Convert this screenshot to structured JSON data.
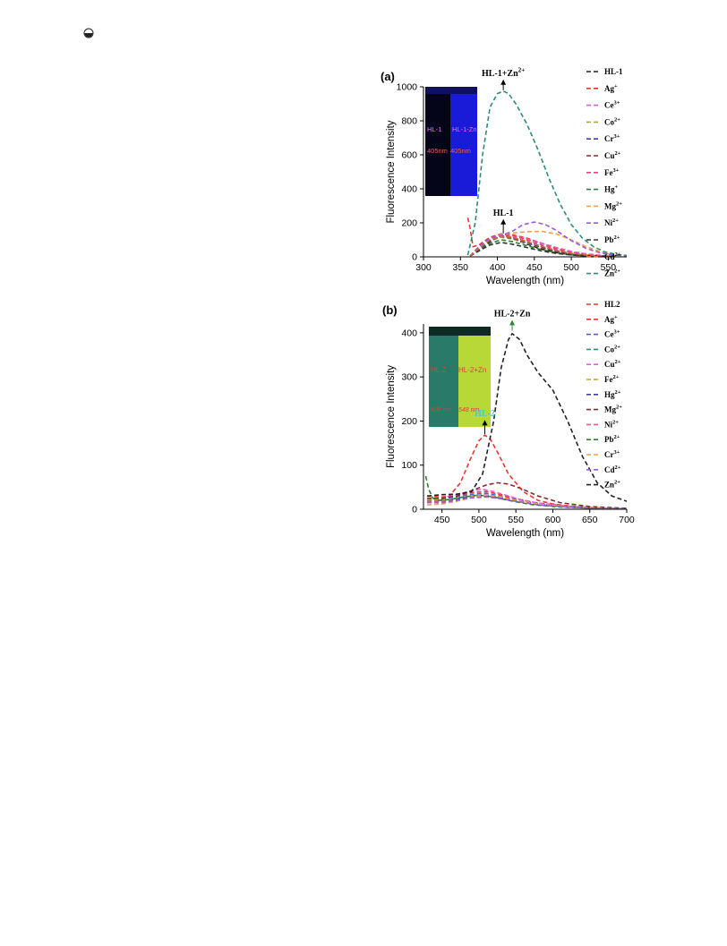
{
  "page": {
    "corner_icon": "half-circle-icon"
  },
  "chart_data": [
    {
      "type": "line",
      "panel_label": "(a)",
      "xlabel": "Wavelength (nm)",
      "ylabel": "Fluorescence Intensity",
      "xlim": [
        300,
        575
      ],
      "ylim": [
        0,
        1000
      ],
      "xticks": [
        300,
        350,
        400,
        450,
        500,
        550
      ],
      "yticks": [
        0,
        200,
        400,
        600,
        800,
        1000
      ],
      "grid": false,
      "legend_placement": "right",
      "annotations": [
        {
          "text": "HL-1+Zn2+",
          "x": 408,
          "y": 980
        },
        {
          "text": "HL-1",
          "x": 408,
          "y": 138
        }
      ],
      "inset": {
        "label_left": "HL-1",
        "label_right": "HL-1-Zn",
        "wl_left": "405nm",
        "wl_right": "405nm"
      },
      "series": [
        {
          "name": "HL-1",
          "color": "#222222",
          "x": [
            363,
            375,
            390,
            405,
            420,
            440,
            460,
            480,
            500,
            520,
            540,
            560
          ],
          "y": [
            5,
            40,
            90,
            125,
            110,
            75,
            45,
            25,
            12,
            6,
            3,
            2
          ]
        },
        {
          "name": "Ag+",
          "color": "#e8362f",
          "x": [
            360,
            363,
            367,
            375,
            390,
            405,
            420,
            440,
            460,
            480,
            500,
            520,
            540,
            560
          ],
          "y": [
            230,
            170,
            60,
            70,
            115,
            135,
            130,
            110,
            80,
            50,
            28,
            14,
            7,
            4
          ]
        },
        {
          "name": "Ce3+",
          "color": "#d95bd9",
          "x": [
            363,
            375,
            390,
            405,
            420,
            440,
            460,
            480,
            500,
            520,
            540,
            560
          ],
          "y": [
            5,
            60,
            110,
            130,
            125,
            105,
            80,
            55,
            32,
            18,
            9,
            5
          ]
        },
        {
          "name": "Co2+",
          "color": "#a8a83a",
          "x": [
            363,
            375,
            390,
            405,
            420,
            440,
            460,
            480,
            500,
            520,
            540,
            560
          ],
          "y": [
            5,
            50,
            95,
            115,
            105,
            80,
            55,
            32,
            18,
            9,
            5,
            3
          ]
        },
        {
          "name": "Cr3+",
          "color": "#3f3fa8",
          "x": [
            363,
            375,
            390,
            405,
            420,
            440,
            460,
            480,
            500,
            520,
            540,
            560
          ],
          "y": [
            5,
            45,
            95,
            120,
            110,
            85,
            55,
            32,
            17,
            9,
            5,
            3
          ]
        },
        {
          "name": "Cu2+",
          "color": "#8b2b2b",
          "x": [
            363,
            375,
            390,
            405,
            420,
            440,
            460,
            480,
            500,
            520,
            540,
            560
          ],
          "y": [
            5,
            55,
            105,
            125,
            115,
            90,
            60,
            35,
            19,
            10,
            5,
            3
          ]
        },
        {
          "name": "Fe3+",
          "color": "#e8457a",
          "x": [
            363,
            375,
            390,
            405,
            420,
            440,
            460,
            480,
            500,
            520,
            540,
            560
          ],
          "y": [
            5,
            60,
            110,
            135,
            125,
            100,
            70,
            42,
            24,
            12,
            6,
            3
          ]
        },
        {
          "name": "Hg+",
          "color": "#2e7d32",
          "x": [
            363,
            375,
            390,
            405,
            420,
            440,
            460,
            480,
            500,
            520,
            540,
            560
          ],
          "y": [
            5,
            40,
            80,
            100,
            90,
            65,
            42,
            24,
            13,
            7,
            4,
            2
          ]
        },
        {
          "name": "Mg2+",
          "color": "#f0a050",
          "x": [
            363,
            375,
            390,
            405,
            420,
            440,
            460,
            480,
            500,
            520,
            540,
            560,
            575
          ],
          "y": [
            5,
            55,
            105,
            130,
            140,
            148,
            150,
            135,
            100,
            60,
            30,
            14,
            8
          ]
        },
        {
          "name": "Ni2+",
          "color": "#9b59d9",
          "x": [
            363,
            375,
            390,
            405,
            420,
            435,
            450,
            465,
            480,
            500,
            520,
            540,
            560,
            575
          ],
          "y": [
            5,
            60,
            110,
            125,
            150,
            190,
            205,
            190,
            155,
            95,
            50,
            22,
            10,
            6
          ]
        },
        {
          "name": "Pb2+",
          "color": "#333333",
          "x": [
            363,
            375,
            390,
            405,
            420,
            440,
            460,
            480,
            500,
            520,
            540,
            560
          ],
          "y": [
            5,
            35,
            70,
            85,
            75,
            55,
            35,
            20,
            11,
            6,
            3,
            2
          ]
        },
        {
          "name": "Cd2+",
          "color": "#d66a2f",
          "x": [
            363,
            375,
            390,
            405,
            420,
            440,
            460,
            480,
            500,
            520,
            540,
            560
          ],
          "y": [
            5,
            50,
            100,
            120,
            115,
            90,
            62,
            38,
            21,
            11,
            6,
            3
          ]
        },
        {
          "name": "Zn2+",
          "color": "#2e8b7a",
          "x": [
            360,
            370,
            380,
            390,
            400,
            408,
            415,
            425,
            440,
            455,
            470,
            485,
            500,
            515,
            530,
            545,
            560,
            575
          ],
          "y": [
            10,
            200,
            600,
            880,
            960,
            975,
            960,
            900,
            780,
            630,
            460,
            310,
            190,
            110,
            60,
            30,
            15,
            8
          ]
        }
      ]
    },
    {
      "type": "line",
      "panel_label": "(b)",
      "xlabel": "Wavelength (nm)",
      "ylabel": "Fluorescence Intensity",
      "xlim": [
        425,
        700
      ],
      "ylim": [
        0,
        420
      ],
      "xticks": [
        450,
        500,
        550,
        600,
        650,
        700
      ],
      "yticks": [
        0,
        100,
        200,
        300,
        400
      ],
      "grid": false,
      "legend_placement": "right",
      "annotations": [
        {
          "text": "HL-2+Zn",
          "x": 545,
          "y": 405
        },
        {
          "text": "HL-2",
          "x": 508,
          "y": 170
        }
      ],
      "inset": {
        "label_left": "HL-2",
        "label_right": "HL-2+Zn",
        "wl_left": "508 nm",
        "wl_right": "548 nm"
      },
      "series": [
        {
          "name": "HL2",
          "color": "#e8362f",
          "x": [
            430,
            445,
            460,
            475,
            490,
            500,
            508,
            515,
            525,
            540,
            560,
            580,
            600,
            620,
            650,
            680,
            700
          ],
          "y": [
            15,
            18,
            30,
            60,
            120,
            155,
            168,
            160,
            130,
            80,
            40,
            20,
            12,
            8,
            4,
            2,
            1
          ]
        },
        {
          "name": "Ag+",
          "color": "#e8362f",
          "x": [
            430,
            450,
            470,
            490,
            510,
            530,
            550,
            580,
            620,
            660,
            700
          ],
          "y": [
            30,
            28,
            30,
            38,
            40,
            33,
            24,
            14,
            7,
            3,
            1
          ]
        },
        {
          "name": "Ce3+",
          "color": "#5b5bd9",
          "x": [
            430,
            450,
            470,
            490,
            510,
            530,
            550,
            580,
            620,
            660,
            700
          ],
          "y": [
            25,
            24,
            28,
            34,
            36,
            30,
            22,
            13,
            6,
            3,
            1
          ]
        },
        {
          "name": "Co2+",
          "color": "#2e8b7a",
          "x": [
            430,
            450,
            470,
            490,
            510,
            530,
            550,
            580,
            620,
            660,
            700
          ],
          "y": [
            20,
            20,
            24,
            30,
            32,
            27,
            20,
            12,
            6,
            3,
            1
          ]
        },
        {
          "name": "Cu2+",
          "color": "#e85be8",
          "x": [
            430,
            450,
            470,
            490,
            505,
            520,
            540,
            560,
            590,
            630,
            670,
            700
          ],
          "y": [
            20,
            25,
            33,
            42,
            45,
            40,
            30,
            20,
            11,
            5,
            2,
            1
          ]
        },
        {
          "name": "Fe2+",
          "color": "#a8a83a",
          "x": [
            430,
            450,
            470,
            490,
            510,
            530,
            550,
            580,
            620,
            660,
            700
          ],
          "y": [
            22,
            20,
            22,
            28,
            30,
            26,
            20,
            12,
            6,
            3,
            1
          ]
        },
        {
          "name": "Hg2+",
          "color": "#3f3fa8",
          "x": [
            430,
            450,
            470,
            490,
            510,
            530,
            550,
            580,
            620,
            660,
            700
          ],
          "y": [
            18,
            18,
            22,
            28,
            30,
            26,
            19,
            11,
            5,
            2,
            1
          ]
        },
        {
          "name": "Mg2+",
          "color": "#8b2b2b",
          "x": [
            430,
            450,
            470,
            490,
            510,
            525,
            540,
            560,
            580,
            610,
            650,
            700
          ],
          "y": [
            25,
            25,
            30,
            42,
            55,
            60,
            57,
            45,
            30,
            15,
            6,
            2
          ]
        },
        {
          "name": "Ni2+",
          "color": "#e85b8a",
          "x": [
            430,
            450,
            470,
            490,
            510,
            530,
            550,
            580,
            620,
            660,
            700
          ],
          "y": [
            18,
            18,
            20,
            26,
            28,
            24,
            18,
            10,
            5,
            2,
            1
          ]
        },
        {
          "name": "Pb2+",
          "color": "#2e7d32",
          "x": [
            428,
            432,
            438,
            445,
            460,
            480,
            500,
            520,
            540,
            570,
            610,
            660,
            700
          ],
          "y": [
            75,
            45,
            25,
            20,
            22,
            28,
            32,
            28,
            20,
            11,
            5,
            2,
            1
          ]
        },
        {
          "name": "Cr3+",
          "color": "#f0a050",
          "x": [
            430,
            450,
            470,
            490,
            510,
            530,
            550,
            580,
            620,
            660,
            700
          ],
          "y": [
            10,
            12,
            18,
            28,
            32,
            28,
            20,
            12,
            6,
            3,
            1
          ]
        },
        {
          "name": "Cd2+",
          "color": "#9b59d9",
          "x": [
            430,
            450,
            470,
            490,
            510,
            530,
            550,
            580,
            620,
            660,
            700
          ],
          "y": [
            15,
            15,
            20,
            26,
            28,
            24,
            18,
            10,
            5,
            2,
            1
          ]
        },
        {
          "name": "Zn2+",
          "color": "#222222",
          "x": [
            430,
            450,
            470,
            490,
            505,
            520,
            530,
            540,
            545,
            555,
            565,
            580,
            600,
            620,
            640,
            660,
            680,
            700
          ],
          "y": [
            30,
            33,
            34,
            40,
            80,
            200,
            320,
            385,
            398,
            385,
            350,
            310,
            270,
            200,
            120,
            60,
            30,
            18
          ]
        }
      ]
    }
  ]
}
